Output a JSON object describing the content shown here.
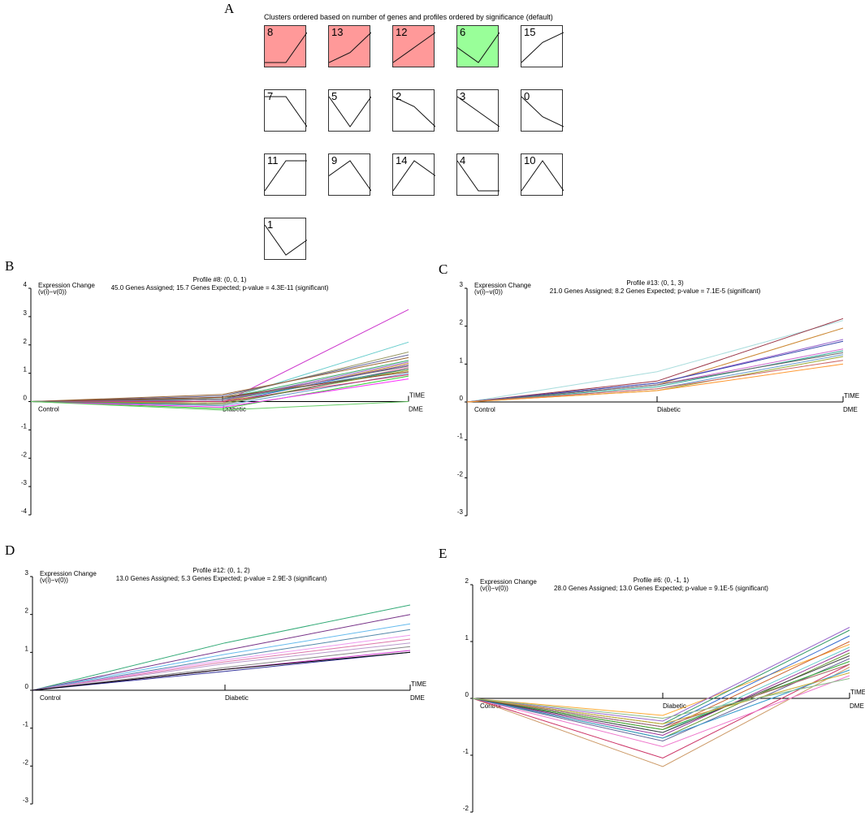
{
  "panels": {
    "a": "A",
    "b": "B",
    "c": "C",
    "d": "D",
    "e": "E"
  },
  "cluster_grid": {
    "title": "Clusters ordered based on number of genes and profiles ordered by significance (default)",
    "cells": [
      {
        "id": "8",
        "fill": "#ff9999",
        "profile": [
          0,
          0,
          1
        ]
      },
      {
        "id": "13",
        "fill": "#ff9999",
        "profile": [
          0,
          1,
          3
        ]
      },
      {
        "id": "12",
        "fill": "#ff9999",
        "profile": [
          0,
          1,
          2
        ]
      },
      {
        "id": "6",
        "fill": "#99ff99",
        "profile": [
          0,
          -1,
          1
        ]
      },
      {
        "id": "15",
        "fill": "#ffffff",
        "profile": [
          0,
          2,
          3
        ]
      },
      {
        "id": "7",
        "fill": "#ffffff",
        "profile": [
          0,
          0,
          -1
        ]
      },
      {
        "id": "5",
        "fill": "#ffffff",
        "profile": [
          0,
          -1,
          0
        ]
      },
      {
        "id": "2",
        "fill": "#ffffff",
        "profile": [
          0,
          -1,
          -3
        ]
      },
      {
        "id": "3",
        "fill": "#ffffff",
        "profile": [
          0,
          -1,
          -2
        ]
      },
      {
        "id": "0",
        "fill": "#ffffff",
        "profile": [
          0,
          -2,
          -3
        ]
      },
      {
        "id": "11",
        "fill": "#ffffff",
        "profile": [
          0,
          1,
          1
        ]
      },
      {
        "id": "9",
        "fill": "#ffffff",
        "profile": [
          0,
          1,
          -1
        ]
      },
      {
        "id": "14",
        "fill": "#ffffff",
        "profile": [
          0,
          2,
          1
        ]
      },
      {
        "id": "4",
        "fill": "#ffffff",
        "profile": [
          0,
          -1,
          -1
        ]
      },
      {
        "id": "10",
        "fill": "#ffffff",
        "profile": [
          0,
          1,
          0
        ]
      },
      {
        "id": "1",
        "fill": "#ffffff",
        "profile": [
          0,
          -1,
          -0.5
        ]
      }
    ]
  },
  "chart_data": [
    {
      "type": "line",
      "panel": "B",
      "title": "Profile #8: (0, 0, 1)",
      "subtitle": "45.0 Genes Assigned; 15.7 Genes Expected; p-value = 4.3E-11 (significant)",
      "ylabel": "Expression Change",
      "ylabel2": "(v(i)−v(0))",
      "xlabel": "TIME",
      "categories": [
        "Control",
        "Diabetic",
        "DME"
      ],
      "ylim": [
        -4,
        4
      ],
      "yticks": [
        "-4",
        "-3",
        "-2",
        "-1",
        "0",
        "1",
        "2",
        "3",
        "4"
      ],
      "series": [
        {
          "color": "#cc33cc",
          "values": [
            0,
            -0.05,
            3.25
          ]
        },
        {
          "color": "#66cccc",
          "values": [
            0,
            0.05,
            2.1
          ]
        },
        {
          "color": "#999966",
          "values": [
            0,
            0.15,
            1.75
          ]
        },
        {
          "color": "#666699",
          "values": [
            0,
            0.2,
            1.65
          ]
        },
        {
          "color": "#996633",
          "values": [
            0,
            0.25,
            1.55
          ]
        },
        {
          "color": "#33aa66",
          "values": [
            0,
            0.1,
            1.45
          ]
        },
        {
          "color": "#9966cc",
          "values": [
            0,
            0.05,
            1.4
          ]
        },
        {
          "color": "#cc9933",
          "values": [
            0,
            0.0,
            1.35
          ]
        },
        {
          "color": "#3366cc",
          "values": [
            0,
            -0.05,
            1.3
          ]
        },
        {
          "color": "#666666",
          "values": [
            0,
            0.1,
            1.25
          ]
        },
        {
          "color": "#cc6699",
          "values": [
            0,
            -0.1,
            1.2
          ]
        },
        {
          "color": "#339999",
          "values": [
            0,
            0.05,
            1.15
          ]
        },
        {
          "color": "#aaaa33",
          "values": [
            0,
            -0.05,
            1.1
          ]
        },
        {
          "color": "#884422",
          "values": [
            0,
            0.15,
            1.05
          ]
        },
        {
          "color": "#6699cc",
          "values": [
            0,
            -0.15,
            1.0
          ]
        },
        {
          "color": "#cc3366",
          "values": [
            0,
            0.0,
            0.95
          ]
        },
        {
          "color": "#33cc33",
          "values": [
            0,
            -0.25,
            0.9
          ]
        },
        {
          "color": "#ff33ff",
          "values": [
            0,
            -0.2,
            0.8
          ]
        },
        {
          "color": "#996699",
          "values": [
            0,
            0.05,
            1.3
          ]
        },
        {
          "color": "#558855",
          "values": [
            0,
            -0.1,
            1.15
          ]
        },
        {
          "color": "#66cc66",
          "values": [
            0,
            -0.3,
            0.0
          ]
        }
      ]
    },
    {
      "type": "line",
      "panel": "C",
      "title": "Profile #13: (0, 1, 3)",
      "subtitle": "21.0 Genes Assigned; 8.2 Genes Expected; p-value = 7.1E-5 (significant)",
      "ylabel": "Expression Change",
      "ylabel2": "(v(i)−v(0))",
      "xlabel": "TIME",
      "categories": [
        "Control",
        "Diabetic",
        "DME"
      ],
      "ylim": [
        -3,
        3
      ],
      "yticks": [
        "-3",
        "-2",
        "-1",
        "0",
        "1",
        "2",
        "3"
      ],
      "series": [
        {
          "color": "#aadddd",
          "values": [
            0,
            0.8,
            2.15
          ]
        },
        {
          "color": "#993344",
          "values": [
            0,
            0.55,
            2.2
          ]
        },
        {
          "color": "#cc8833",
          "values": [
            0,
            0.45,
            1.95
          ]
        },
        {
          "color": "#9966cc",
          "values": [
            0,
            0.5,
            1.65
          ]
        },
        {
          "color": "#3344aa",
          "values": [
            0,
            0.5,
            1.6
          ]
        },
        {
          "color": "#cc66cc",
          "values": [
            0,
            0.45,
            1.4
          ]
        },
        {
          "color": "#33aa99",
          "values": [
            0,
            0.4,
            1.35
          ]
        },
        {
          "color": "#666666",
          "values": [
            0,
            0.45,
            1.3
          ]
        },
        {
          "color": "#6699cc",
          "values": [
            0,
            0.35,
            1.25
          ]
        },
        {
          "color": "#99aa33",
          "values": [
            0,
            0.3,
            1.2
          ]
        },
        {
          "color": "#cc6666",
          "values": [
            0,
            0.35,
            1.1
          ]
        },
        {
          "color": "#ff9933",
          "values": [
            0,
            0.3,
            1.0
          ]
        }
      ]
    },
    {
      "type": "line",
      "panel": "D",
      "title": "Profile #12: (0, 1, 2)",
      "subtitle": "13.0 Genes Assigned; 5.3 Genes Expected; p-value = 2.9E-3 (significant)",
      "ylabel": "Expression Change",
      "ylabel2": "(v(i)−v(0))",
      "xlabel": "TIME",
      "categories": [
        "Control",
        "Diabetic",
        "DME"
      ],
      "ylim": [
        -3,
        3
      ],
      "yticks": [
        "-3",
        "-2",
        "-1",
        "0",
        "1",
        "2",
        "3"
      ],
      "series": [
        {
          "color": "#33aa77",
          "values": [
            0,
            1.25,
            2.25
          ]
        },
        {
          "color": "#773388",
          "values": [
            0,
            1.05,
            2.0
          ]
        },
        {
          "color": "#66bbee",
          "values": [
            0,
            0.95,
            1.75
          ]
        },
        {
          "color": "#5588aa",
          "values": [
            0,
            0.85,
            1.6
          ]
        },
        {
          "color": "#ee99ee",
          "values": [
            0,
            0.8,
            1.45
          ]
        },
        {
          "color": "#dd77aa",
          "values": [
            0,
            0.75,
            1.35
          ]
        },
        {
          "color": "#bb99cc",
          "values": [
            0,
            0.7,
            1.25
          ]
        },
        {
          "color": "#888888",
          "values": [
            0,
            0.6,
            1.15
          ]
        },
        {
          "color": "#cc33cc",
          "values": [
            0,
            0.55,
            1.05
          ]
        },
        {
          "color": "#333399",
          "values": [
            0,
            0.5,
            1.0
          ]
        },
        {
          "color": "#000000",
          "values": [
            0,
            0.55,
            1.0
          ]
        }
      ]
    },
    {
      "type": "line",
      "panel": "E",
      "title": "Profile #6: (0, -1, 1)",
      "subtitle": "28.0 Genes Assigned; 13.0 Genes Expected; p-value = 9.1E-5 (significant)",
      "ylabel": "Expression Change",
      "ylabel2": "(v(i)−v(0))",
      "xlabel": "TIME",
      "categories": [
        "Control",
        "Diabetic",
        "DME"
      ],
      "ylim": [
        -2,
        2
      ],
      "yticks": [
        "-2",
        "-1",
        "0",
        "1",
        "2"
      ],
      "series": [
        {
          "color": "#cc9966",
          "values": [
            0,
            -1.2,
            0.55
          ]
        },
        {
          "color": "#cc3366",
          "values": [
            0,
            -1.05,
            0.6
          ]
        },
        {
          "color": "#ee77cc",
          "values": [
            0,
            -0.85,
            0.4
          ]
        },
        {
          "color": "#ffaa33",
          "values": [
            0,
            -0.3,
            0.95
          ]
        },
        {
          "color": "#9966cc",
          "values": [
            0,
            -0.4,
            1.25
          ]
        },
        {
          "color": "#339966",
          "values": [
            0,
            -0.45,
            1.2
          ]
        },
        {
          "color": "#3366cc",
          "values": [
            0,
            -0.5,
            1.1
          ]
        },
        {
          "color": "#cc6633",
          "values": [
            0,
            -0.55,
            1.0
          ]
        },
        {
          "color": "#66cccc",
          "values": [
            0,
            -0.6,
            0.9
          ]
        },
        {
          "color": "#993399",
          "values": [
            0,
            -0.65,
            0.85
          ]
        },
        {
          "color": "#669933",
          "values": [
            0,
            -0.7,
            0.8
          ]
        },
        {
          "color": "#666699",
          "values": [
            0,
            -0.75,
            0.7
          ]
        },
        {
          "color": "#33aa33",
          "values": [
            0,
            -0.55,
            0.65
          ]
        },
        {
          "color": "#aa6666",
          "values": [
            0,
            -0.5,
            0.6
          ]
        },
        {
          "color": "#3399cc",
          "values": [
            0,
            -0.7,
            0.5
          ]
        },
        {
          "color": "#444444",
          "values": [
            0,
            -0.6,
            0.75
          ]
        },
        {
          "color": "#ccaa33",
          "values": [
            0,
            -0.45,
            0.45
          ]
        },
        {
          "color": "#88bb88",
          "values": [
            0,
            -0.35,
            0.35
          ]
        }
      ]
    }
  ]
}
